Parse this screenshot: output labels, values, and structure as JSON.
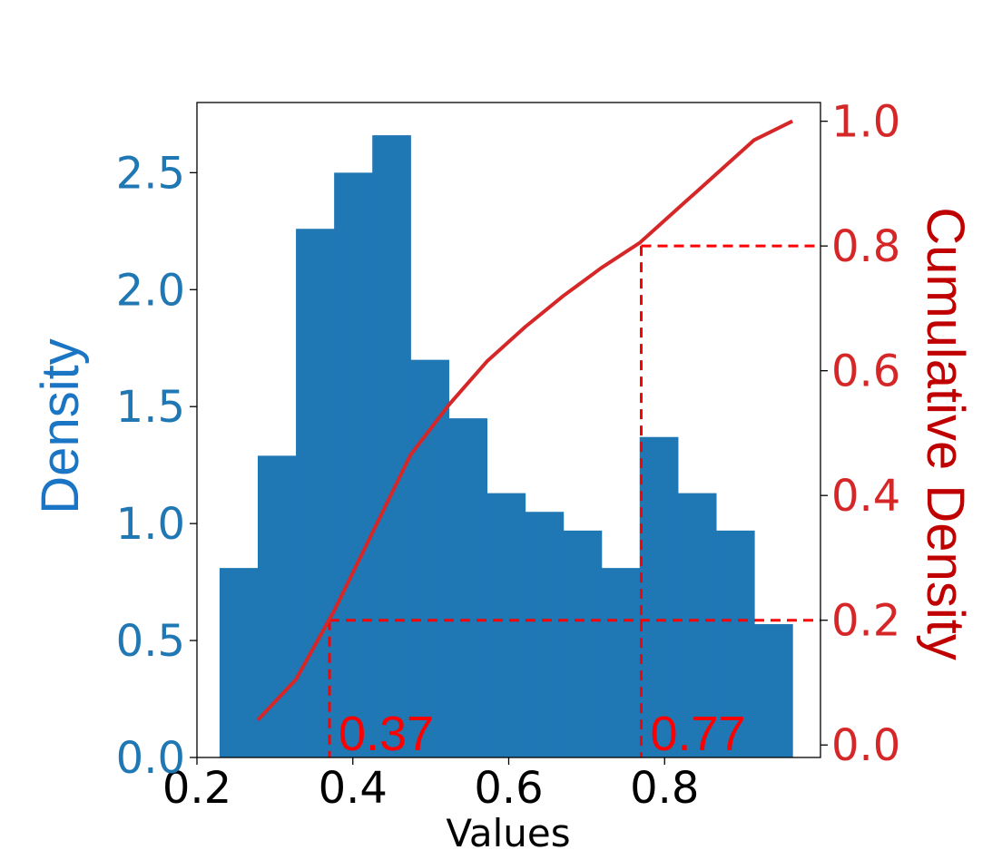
{
  "chart_data": {
    "type": "bar",
    "xlabel": "Values",
    "ylabel_left": "Density",
    "ylabel_right": "Cumulative Density",
    "xlim": [
      0.2,
      1.0
    ],
    "ylim_left": [
      0,
      2.8
    ],
    "ylim_right": [
      -0.02,
      1.03
    ],
    "x_ticks": [
      "0.2",
      "0.4",
      "0.6",
      "0.8"
    ],
    "x_tick_values": [
      0.2,
      0.4,
      0.6,
      0.8
    ],
    "y_left_ticks": [
      "0.0",
      "0.5",
      "1.0",
      "1.5",
      "2.0",
      "2.5"
    ],
    "y_left_tick_values": [
      0,
      0.5,
      1.0,
      1.5,
      2.0,
      2.5
    ],
    "y_right_ticks": [
      "0.0",
      "0.2",
      "0.4",
      "0.6",
      "0.8",
      "1.0"
    ],
    "y_right_tick_values": [
      0,
      0.2,
      0.4,
      0.6,
      0.8,
      1.0
    ],
    "histogram": {
      "color": "#1f77b4",
      "bin_edges": [
        0.229,
        0.278,
        0.327,
        0.376,
        0.425,
        0.474,
        0.523,
        0.572,
        0.621,
        0.67,
        0.719,
        0.768,
        0.817,
        0.866,
        0.915,
        0.964
      ],
      "density": [
        0.81,
        1.29,
        2.26,
        2.5,
        2.66,
        1.7,
        1.45,
        1.13,
        1.05,
        0.97,
        0.81,
        1.37,
        1.13,
        0.97,
        0.57
      ]
    },
    "cdf_line": {
      "color": "#d62728",
      "x": [
        0.278,
        0.327,
        0.376,
        0.425,
        0.474,
        0.523,
        0.572,
        0.621,
        0.67,
        0.719,
        0.768,
        0.817,
        0.866,
        0.915,
        0.964
      ],
      "y": [
        0.04,
        0.105,
        0.215,
        0.34,
        0.465,
        0.545,
        0.615,
        0.67,
        0.72,
        0.765,
        0.805,
        0.86,
        0.915,
        0.97,
        1.0
      ]
    },
    "percentile_markers": [
      {
        "x": 0.37,
        "cdf": 0.2,
        "label": "0.37"
      },
      {
        "x": 0.77,
        "cdf": 0.8,
        "label": "0.77"
      }
    ],
    "colors": {
      "left_axis": "#1f77b4",
      "left_label": "#1a75c4",
      "right_axis": "#d62728",
      "right_label": "#c00000",
      "annotation": "#ff0000"
    }
  }
}
